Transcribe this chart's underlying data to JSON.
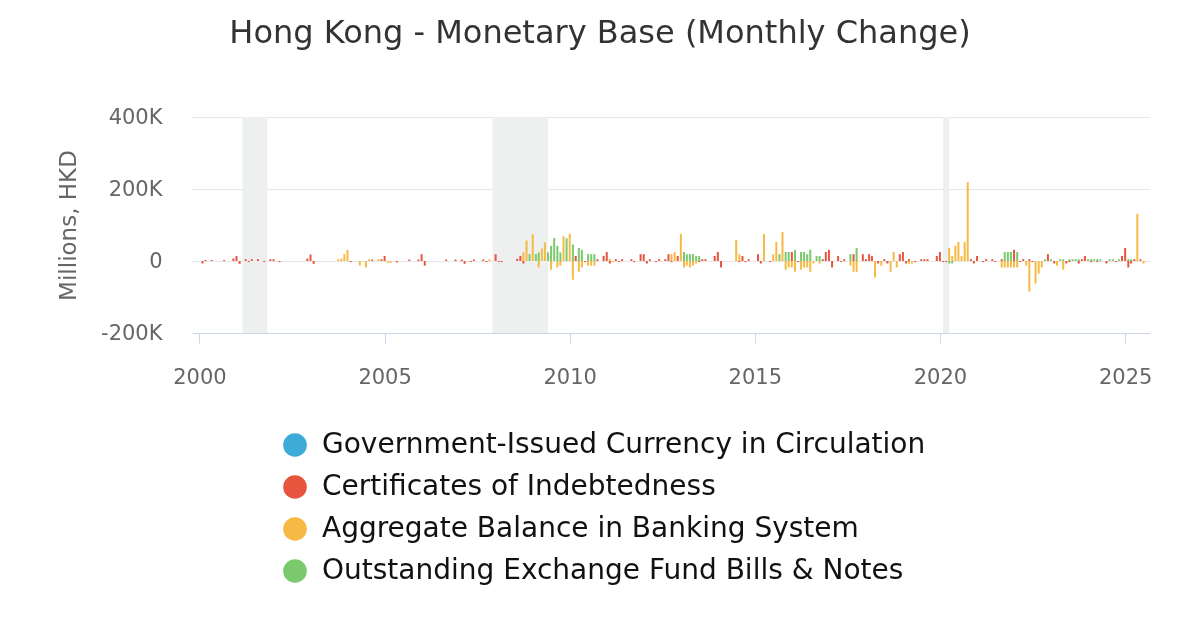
{
  "chart_data": {
    "type": "bar",
    "title": "Hong Kong - Monetary Base (Monthly Change)",
    "ylabel": "Millions, HKD",
    "xlim": [
      "1999-10-20",
      "2025-09-03"
    ],
    "xticks": [
      "2000",
      "2005",
      "2010",
      "2015",
      "2020",
      "2025"
    ],
    "ylim": [
      -200000,
      400000
    ],
    "yticks": [
      {
        "value": -200000,
        "label": "-200K"
      },
      {
        "value": 0,
        "label": "0"
      },
      {
        "value": 200000,
        "label": "200K"
      },
      {
        "value": 400000,
        "label": "400K"
      }
    ],
    "grid": "y",
    "legend": "bottom",
    "bands": [
      {
        "axis": "x",
        "from": "2001-03",
        "to": "2001-11",
        "color": "#eef0f0"
      },
      {
        "axis": "x",
        "from": "2007-12",
        "to": "2009-06",
        "color": "#eef0f0"
      },
      {
        "axis": "x",
        "from": "2020-02",
        "to": "2020-04",
        "color": "#eef0f0"
      }
    ],
    "series": [
      {
        "name": "Government-Issued Currency in Circulation",
        "color": "#3eaad8"
      },
      {
        "name": "Certificates of Indebtedness",
        "color": "#e8553f",
        "x": [
          "2000-02",
          "2000-03",
          "2000-05",
          "2000-09",
          "2000-12",
          "2001-01",
          "2001-02",
          "2001-04",
          "2001-05",
          "2001-06",
          "2001-08",
          "2001-10",
          "2001-12",
          "2002-01",
          "2002-03",
          "2002-12",
          "2003-01",
          "2003-02",
          "2004-02",
          "2004-09",
          "2004-12",
          "2005-01",
          "2005-05",
          "2005-09",
          "2005-12",
          "2006-01",
          "2006-02",
          "2006-09",
          "2006-12",
          "2007-02",
          "2007-03",
          "2007-05",
          "2007-06",
          "2007-09",
          "2007-10",
          "2008-01",
          "2008-02",
          "2008-03",
          "2008-08",
          "2008-09",
          "2008-10",
          "2010-03",
          "2010-06",
          "2010-10",
          "2010-12",
          "2011-01",
          "2011-02",
          "2011-04",
          "2011-05",
          "2011-06",
          "2011-09",
          "2011-10",
          "2011-12",
          "2012-01",
          "2012-02",
          "2012-03",
          "2012-05",
          "2012-06",
          "2012-08",
          "2012-09",
          "2012-10",
          "2012-12",
          "2013-07",
          "2013-08",
          "2013-09",
          "2013-12",
          "2014-01",
          "2014-02",
          "2014-08",
          "2014-09",
          "2014-10",
          "2014-11",
          "2015-02",
          "2015-03",
          "2015-06",
          "2016-01",
          "2016-03",
          "2016-11",
          "2016-12",
          "2017-01",
          "2017-02",
          "2017-04",
          "2017-05",
          "2017-06",
          "2017-09",
          "2017-12",
          "2018-01",
          "2018-02",
          "2018-03",
          "2018-05",
          "2018-07",
          "2018-08",
          "2018-12",
          "2019-01",
          "2019-02",
          "2019-03",
          "2019-05",
          "2019-07",
          "2019-08",
          "2019-09",
          "2019-12",
          "2020-01",
          "2020-02",
          "2020-03",
          "2020-11",
          "2020-12",
          "2021-01",
          "2021-03",
          "2021-04",
          "2021-06",
          "2021-07",
          "2021-09",
          "2022-01",
          "2022-03",
          "2022-04",
          "2022-06",
          "2022-07",
          "2022-12",
          "2023-02",
          "2023-06",
          "2023-07",
          "2023-10",
          "2023-11",
          "2023-12",
          "2024-02",
          "2024-04",
          "2024-07",
          "2024-10",
          "2024-12",
          "2025-01",
          "2025-02",
          "2025-03",
          "2025-04",
          "2025-06"
        ],
        "values": [
          -7000,
          3000,
          3000,
          3000,
          7000,
          14000,
          -8000,
          5000,
          -3000,
          5000,
          5000,
          -3000,
          5000,
          5000,
          -3000,
          7000,
          18000,
          -8000,
          -3000,
          4000,
          5000,
          14000,
          -4000,
          4000,
          4000,
          19000,
          -13000,
          4000,
          4000,
          4000,
          -8000,
          -3000,
          4000,
          4000,
          -3000,
          19000,
          -3000,
          -3000,
          6000,
          14000,
          -7000,
          14000,
          -3000,
          5000,
          14000,
          25000,
          -7000,
          5000,
          -3000,
          5000,
          5000,
          -3000,
          19000,
          19000,
          -7000,
          5000,
          -3000,
          5000,
          5000,
          19000,
          -3000,
          14000,
          -3000,
          5000,
          5000,
          14000,
          25000,
          -18000,
          -3000,
          14000,
          -3000,
          5000,
          19000,
          -7000,
          -3000,
          25000,
          -3000,
          5000,
          25000,
          31000,
          -18000,
          14000,
          -3000,
          5000,
          19000,
          19000,
          5000,
          19000,
          14000,
          -7000,
          5000,
          -7000,
          19000,
          25000,
          -7000,
          5000,
          -3000,
          5000,
          5000,
          5000,
          14000,
          25000,
          -3000,
          -3000,
          5000,
          -7000,
          14000,
          -3000,
          5000,
          5000,
          -3000,
          5000,
          31000,
          -3000,
          5000,
          5000,
          -3000,
          19000,
          -7000,
          -7000,
          -3000,
          -7000,
          5000,
          14000,
          -3000,
          -3000,
          -7000,
          -3000,
          14000,
          36000,
          -18000,
          -7000,
          5000,
          5000
        ]
      },
      {
        "name": "Aggregate Balance in Banking System",
        "color": "#f6ba44",
        "x": [
          "2003-10",
          "2003-11",
          "2003-12",
          "2004-01",
          "2004-05",
          "2004-07",
          "2004-08",
          "2004-11",
          "2005-02",
          "2005-03",
          "2007-11",
          "2008-10",
          "2008-11",
          "2009-01",
          "2009-03",
          "2009-04",
          "2009-05",
          "2009-07",
          "2009-09",
          "2009-10",
          "2009-11",
          "2010-01",
          "2010-02",
          "2010-04",
          "2010-05",
          "2010-07",
          "2010-08",
          "2010-09",
          "2011-02",
          "2011-03",
          "2012-10",
          "2012-11",
          "2013-01",
          "2013-02",
          "2013-03",
          "2013-04",
          "2013-05",
          "2013-06",
          "2014-07",
          "2014-08",
          "2015-04",
          "2015-07",
          "2015-08",
          "2015-10",
          "2015-11",
          "2015-12",
          "2016-01",
          "2016-02",
          "2016-04",
          "2016-05",
          "2016-06",
          "2016-07",
          "2016-08",
          "2016-10",
          "2017-08",
          "2017-09",
          "2017-10",
          "2018-04",
          "2018-06",
          "2018-09",
          "2018-10",
          "2018-11",
          "2019-03",
          "2019-04",
          "2020-04",
          "2020-05",
          "2020-06",
          "2020-07",
          "2020-08",
          "2020-09",
          "2020-10",
          "2021-09",
          "2021-10",
          "2021-11",
          "2021-12",
          "2022-01",
          "2022-02",
          "2022-05",
          "2022-06",
          "2022-08",
          "2022-09",
          "2022-10",
          "2023-03",
          "2023-05",
          "2025-05",
          "2025-07"
        ],
        "values": [
          5000,
          7000,
          19000,
          31000,
          -13000,
          -18000,
          5000,
          5000,
          -5000,
          -5000,
          5000,
          24000,
          57000,
          74000,
          -18000,
          35000,
          52000,
          -24000,
          -18000,
          -13000,
          69000,
          75000,
          -52000,
          -30000,
          -18000,
          -13000,
          -13000,
          -13000,
          6000,
          -3000,
          19000,
          25000,
          75000,
          -18000,
          -13000,
          -18000,
          -13000,
          -7000,
          58000,
          19000,
          75000,
          19000,
          53000,
          81000,
          -24000,
          -18000,
          -18000,
          -30000,
          -24000,
          -18000,
          -18000,
          -30000,
          -7000,
          -7000,
          -13000,
          -30000,
          -30000,
          -46000,
          -13000,
          -30000,
          25000,
          -18000,
          -7000,
          -7000,
          36000,
          14000,
          42000,
          53000,
          14000,
          53000,
          219000,
          -18000,
          -18000,
          -18000,
          -18000,
          -18000,
          -18000,
          -13000,
          -85000,
          -63000,
          -35000,
          -18000,
          -13000,
          -24000,
          131000,
          -7000
        ]
      },
      {
        "name": "Outstanding Exchange Fund Bills & Notes",
        "color": "#7ac96c",
        "x": [
          "2008-12",
          "2009-02",
          "2009-03",
          "2009-06",
          "2009-07",
          "2009-08",
          "2009-09",
          "2009-10",
          "2009-12",
          "2010-02",
          "2010-04",
          "2010-05",
          "2010-07",
          "2010-08",
          "2010-09",
          "2013-02",
          "2013-03",
          "2013-04",
          "2013-05",
          "2013-06",
          "2013-07",
          "2015-09",
          "2015-11",
          "2015-12",
          "2016-02",
          "2016-04",
          "2016-05",
          "2016-06",
          "2016-07",
          "2016-09",
          "2016-10",
          "2017-08",
          "2017-10",
          "2020-04",
          "2020-05",
          "2021-10",
          "2021-11",
          "2021-12",
          "2022-02",
          "2022-11",
          "2023-01",
          "2023-04",
          "2023-05",
          "2023-07",
          "2023-08",
          "2023-09",
          "2023-10",
          "2024-01",
          "2024-02",
          "2024-03",
          "2024-04",
          "2024-05",
          "2024-08",
          "2024-09",
          "2024-11",
          "2025-02",
          "2025-03"
        ],
        "values": [
          19000,
          19000,
          24000,
          24000,
          42000,
          64000,
          42000,
          24000,
          63000,
          46000,
          36000,
          31000,
          19000,
          19000,
          19000,
          25000,
          19000,
          19000,
          19000,
          14000,
          14000,
          19000,
          25000,
          25000,
          31000,
          25000,
          25000,
          19000,
          31000,
          14000,
          14000,
          19000,
          36000,
          -7000,
          -7000,
          25000,
          25000,
          25000,
          25000,
          5000,
          5000,
          5000,
          5000,
          5000,
          5000,
          5000,
          5000,
          5000,
          5000,
          5000,
          5000,
          5000,
          5000,
          5000,
          5000,
          5000,
          5000
        ]
      }
    ]
  }
}
